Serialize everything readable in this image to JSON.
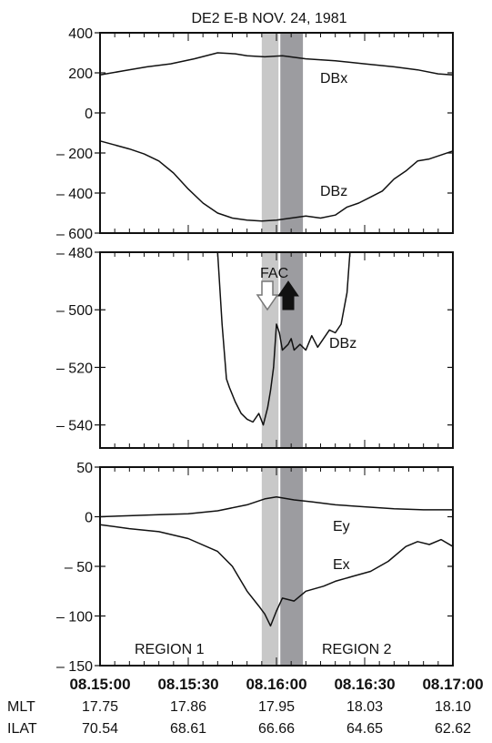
{
  "chart_data": {
    "type": "line",
    "title": "DE2   E-B   NOV. 24, 1981",
    "x_ticks": [
      "08.15:00",
      "08.15:30",
      "08.16:00",
      "08.16:30",
      "08.17:00"
    ],
    "x_seconds_range": [
      0,
      120
    ],
    "ephemeris": [
      {
        "label": "MLT",
        "values": [
          "17.75",
          "17.86",
          "17.95",
          "18.03",
          "18.10"
        ]
      },
      {
        "label": "ILAT",
        "values": [
          "70.54",
          "68.61",
          "66.66",
          "64.65",
          "62.62"
        ]
      }
    ],
    "shaded_bands": [
      {
        "from_s": 55,
        "to_s": 61,
        "color": "#c8c8c8"
      },
      {
        "from_s": 61,
        "to_s": 69,
        "color": "#9c9ca0"
      }
    ],
    "panels": [
      {
        "name": "DB",
        "ylim": [
          -600,
          400
        ],
        "yticks": [
          400,
          200,
          0,
          -200,
          -400,
          -600
        ],
        "yticklabels": [
          "400",
          "200",
          "0",
          "– 200",
          "– 400",
          "– 600"
        ],
        "series": [
          {
            "name": "DBx",
            "x": [
              0,
              8,
              16,
              24,
              32,
              40,
              46,
              50,
              56,
              62,
              70,
              80,
              90,
              100,
              108,
              115,
              120
            ],
            "y": [
              190,
              210,
              230,
              245,
              270,
              300,
              295,
              285,
              280,
              285,
              270,
              260,
              245,
              230,
              215,
              195,
              190
            ]
          },
          {
            "name": "DBz",
            "x": [
              0,
              5,
              10,
              15,
              20,
              25,
              30,
              35,
              40,
              45,
              50,
              55,
              60,
              65,
              70,
              75,
              80,
              84,
              88,
              92,
              96,
              100,
              104,
              108,
              112,
              116,
              120
            ],
            "y": [
              -140,
              -160,
              -180,
              -205,
              -240,
              -300,
              -380,
              -450,
              -500,
              -525,
              -535,
              -540,
              -535,
              -525,
              -515,
              -525,
              -510,
              -470,
              -450,
              -420,
              -390,
              -330,
              -290,
              -240,
              -230,
              -210,
              -190
            ]
          }
        ]
      },
      {
        "name": "DBz zoom",
        "ylim": [
          -548,
          -480
        ],
        "yticks": [
          -480,
          -500,
          -520,
          -540
        ],
        "yticklabels": [
          "– 480",
          "– 500",
          "– 520",
          "– 540"
        ],
        "annotation": "FAC",
        "series": [
          {
            "name": "DBz",
            "x": [
              40,
              41.5,
              43,
              44,
              46,
              48,
              50,
              52,
              54,
              55.5,
              57,
              58,
              59,
              60,
              61,
              62,
              63,
              64,
              65,
              66,
              68,
              70,
              72,
              74,
              76,
              78,
              80,
              82,
              84,
              85
            ],
            "y": [
              -480,
              -505,
              -524,
              -527,
              -532,
              -536,
              -538,
              -539,
              -536,
              -540,
              -534,
              -528,
              -520,
              -505,
              -508,
              -514,
              -513,
              -512,
              -510,
              -514,
              -512,
              -514,
              -509,
              -513,
              -510,
              -507,
              -508,
              -505,
              -494,
              -480
            ]
          }
        ]
      },
      {
        "name": "E",
        "ylim": [
          -150,
          50
        ],
        "yticks": [
          50,
          0,
          -50,
          -100,
          -150
        ],
        "yticklabels": [
          "50",
          "0",
          "– 50",
          "– 100",
          "– 150"
        ],
        "regions": [
          "REGION 1",
          "REGION 2"
        ],
        "series": [
          {
            "name": "Ey",
            "x": [
              0,
              10,
              20,
              30,
              40,
              50,
              56,
              60,
              66,
              72,
              80,
              90,
              100,
              110,
              120
            ],
            "y": [
              0,
              1,
              2,
              3,
              6,
              12,
              18,
              20,
              17,
              15,
              12,
              10,
              8,
              7,
              7
            ]
          },
          {
            "name": "Ex",
            "x": [
              0,
              10,
              20,
              30,
              40,
              45,
              50,
              54,
              56,
              58,
              60,
              62,
              66,
              70,
              76,
              80,
              86,
              92,
              98,
              104,
              108,
              112,
              116,
              120
            ],
            "y": [
              -8,
              -12,
              -15,
              -22,
              -35,
              -50,
              -75,
              -90,
              -98,
              -110,
              -95,
              -82,
              -85,
              -75,
              -70,
              -65,
              -60,
              -55,
              -45,
              -30,
              -25,
              -28,
              -23,
              -30
            ]
          }
        ]
      }
    ]
  }
}
